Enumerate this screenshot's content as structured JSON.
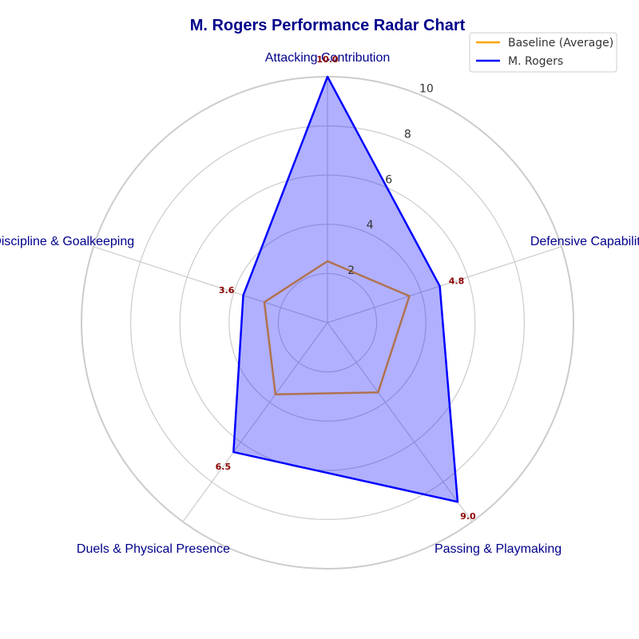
{
  "chart_data": {
    "type": "radar",
    "title": "M. Rogers Performance Radar Chart",
    "categories": [
      "Attacking Contribution",
      "Defensive Capability",
      "Passing & Playmaking",
      "Duels & Physical Presence",
      "Discipline & Goalkeeping"
    ],
    "rlim": [
      0,
      10
    ],
    "rticks": [
      "2",
      "4",
      "6",
      "8",
      "10"
    ],
    "grid": true,
    "legend_position": "top-right",
    "series": [
      {
        "name": "Baseline (Average)",
        "values": [
          2.5,
          3.5,
          3.5,
          3.6,
          2.7
        ],
        "color": "#ffa500",
        "fill": false
      },
      {
        "name": "M. Rogers",
        "values": [
          10.0,
          4.8,
          9.0,
          6.5,
          3.6
        ],
        "color": "#0000ff",
        "fill": true,
        "fill_color": "#0000ff"
      }
    ],
    "data_labels": [
      "10.0",
      "4.8",
      "9.0",
      "6.5",
      "3.6"
    ]
  }
}
